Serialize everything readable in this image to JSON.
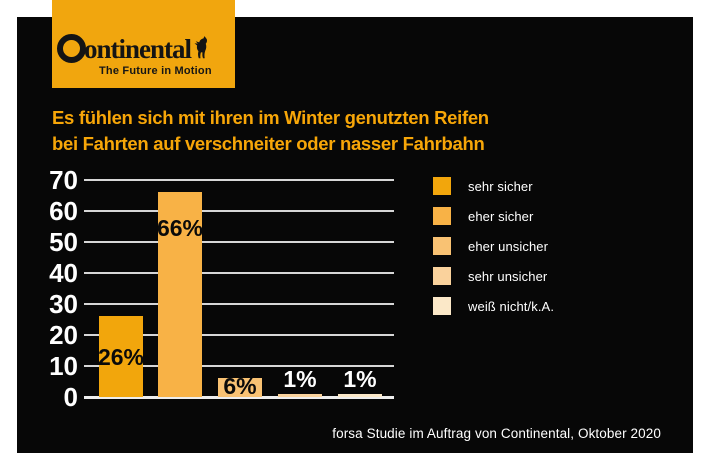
{
  "logo": {
    "brand": "Continental",
    "brand_rest": "ontinental",
    "tagline": "The Future in Motion"
  },
  "title": {
    "line1": "Es fühlen sich mit ihren im Winter genutzten Reifen",
    "line2": "bei Fahrten auf verschneiter oder nasser Fahrbahn"
  },
  "chart_data": {
    "type": "bar",
    "categories": [
      "sehr sicher",
      "eher sicher",
      "eher unsicher",
      "sehr unsicher",
      "weiß nicht/k.A."
    ],
    "values": [
      26,
      66,
      6,
      1,
      1
    ],
    "value_labels": [
      "26%",
      "66%",
      "6%",
      "1%",
      "1%"
    ],
    "bar_colors": [
      "#F2A60C",
      "#F8B246",
      "#F9C273",
      "#FAD29C",
      "#FBE8C8"
    ],
    "title": "Es fühlen sich mit ihren im Winter genutzten Reifen bei Fahrten auf verschneiter oder nasser Fahrbahn",
    "xlabel": "",
    "ylabel": "",
    "ylim": [
      0,
      70
    ],
    "yticks": [
      70,
      60,
      50,
      40,
      30,
      20,
      10,
      0
    ],
    "grid": true,
    "legend_position": "right"
  },
  "legend": {
    "items": [
      {
        "label": "sehr sicher",
        "color": "#F2A60C"
      },
      {
        "label": "eher sicher",
        "color": "#F8B246"
      },
      {
        "label": "eher unsicher",
        "color": "#F9C273"
      },
      {
        "label": "sehr unsicher",
        "color": "#FAD29C"
      },
      {
        "label": "weiß nicht/k.A.",
        "color": "#FBE8C8"
      }
    ]
  },
  "footer": {
    "source": "forsa Studie im Auftrag von Continental, Oktober 2020"
  },
  "colors": {
    "page_background": "#FFFFFF",
    "card_background": "#070707",
    "accent_orange": "#F7A608",
    "logo_background": "#F1A60E",
    "grid_line": "#D6D6D6",
    "baseline": "#EDEDED",
    "tick_text": "#FFFFFF",
    "label_dark": "#0A0A0A",
    "label_light": "#FFFFFF"
  }
}
